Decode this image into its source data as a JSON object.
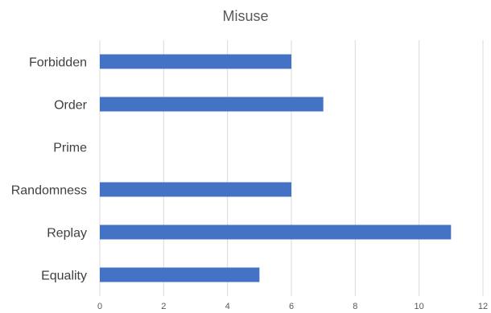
{
  "chart_data": {
    "type": "bar",
    "orientation": "horizontal",
    "title": "Misuse",
    "categories": [
      "Forbidden",
      "Order",
      "Prime",
      "Randomness",
      "Replay",
      "Equality"
    ],
    "values": [
      6,
      7,
      0,
      6,
      11,
      5
    ],
    "xlim": [
      0,
      12
    ],
    "xticks": [
      0,
      2,
      4,
      6,
      8,
      10,
      12
    ],
    "grid": "vertical",
    "legend": "none",
    "bar_color": "#4472C4"
  }
}
